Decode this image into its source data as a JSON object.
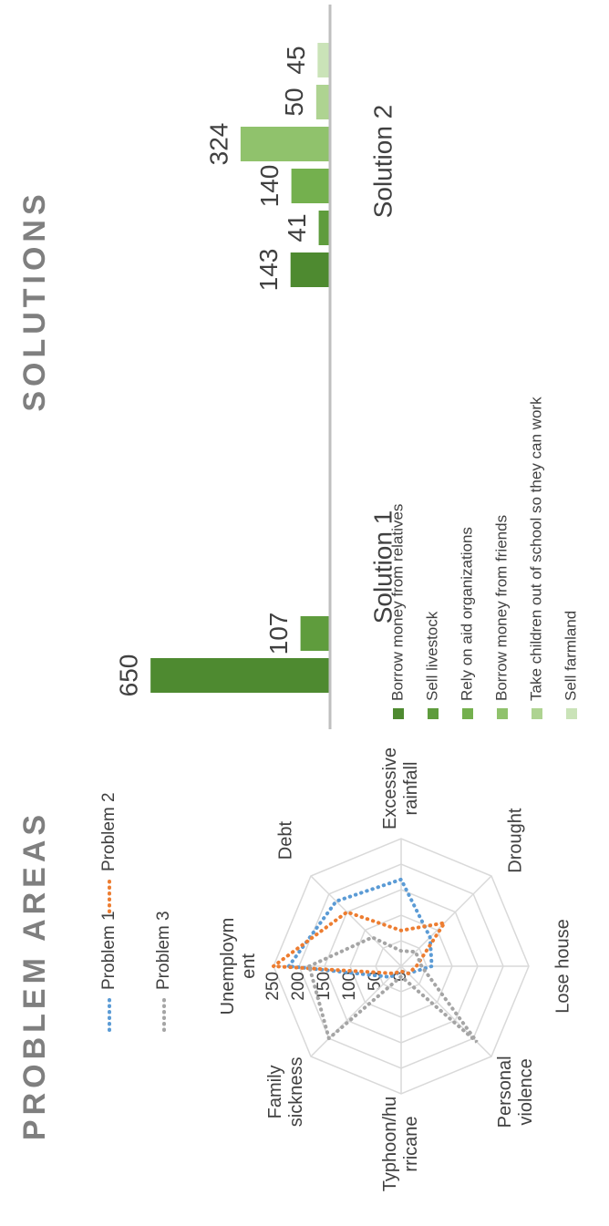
{
  "chart_data": [
    {
      "type": "radar",
      "title": "PROBLEM AREAS",
      "categories": [
        "Unemployment",
        "Debt",
        "Excessive rainfall",
        "Drought",
        "Lose house",
        "Personal violence",
        "Typhoon/hurricane",
        "Family sickness"
      ],
      "series": [
        {
          "name": "Problem 1",
          "color": "#5b9bd5",
          "values": [
            220,
            180,
            170,
            80,
            60,
            20,
            10,
            30
          ]
        },
        {
          "name": "Problem 2",
          "color": "#ed7d31",
          "values": [
            250,
            150,
            70,
            120,
            30,
            20,
            10,
            20
          ]
        },
        {
          "name": "Problem 3",
          "color": "#a5a5a5",
          "values": [
            180,
            80,
            30,
            40,
            40,
            210,
            20,
            200
          ]
        }
      ],
      "rlim": [
        0,
        250
      ],
      "rticks": [
        0,
        50,
        100,
        150,
        200,
        250
      ],
      "grid": true,
      "legend": "top"
    },
    {
      "type": "bar",
      "title": "SOLUTIONS",
      "categories": [
        "Solution 1",
        "Solution 2"
      ],
      "series": [
        {
          "name": "Borrow money from relatives",
          "color": "#4e8a30",
          "values": [
            650,
            143
          ]
        },
        {
          "name": "Sell livestock",
          "color": "#5f9c3d",
          "values": [
            107,
            41
          ]
        },
        {
          "name": "Rely on aid organizations",
          "color": "#74b04e",
          "values": [
            null,
            140
          ]
        },
        {
          "name": "Borrow money from friends",
          "color": "#90c26c",
          "values": [
            null,
            324
          ]
        },
        {
          "name": "Take children out of school so they can work",
          "color": "#aed391",
          "values": [
            null,
            50
          ]
        },
        {
          "name": "Sell farmland",
          "color": "#cae3b8",
          "values": [
            null,
            45
          ]
        }
      ],
      "ylim": [
        0,
        700
      ],
      "legend": "bottom"
    }
  ]
}
